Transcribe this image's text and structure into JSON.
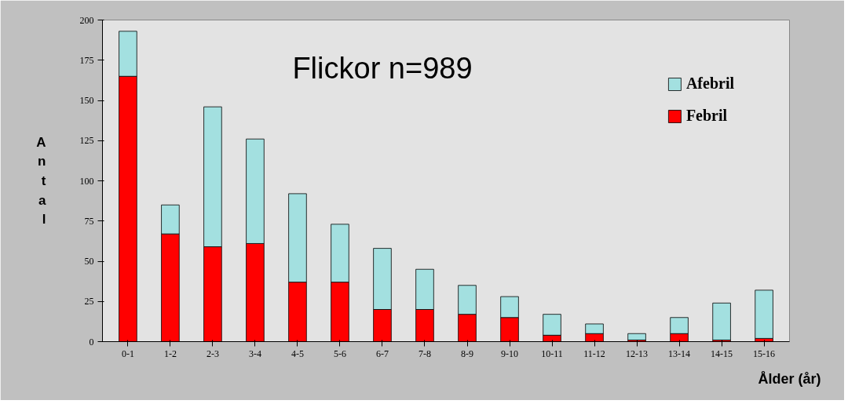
{
  "chart_data": {
    "type": "bar",
    "stacked": true,
    "title": "Flickor n=989",
    "xlabel": "Ålder (år)",
    "ylabel": "Antal",
    "categories": [
      "0-1",
      "1-2",
      "2-3",
      "3-4",
      "4-5",
      "5-6",
      "6-7",
      "7-8",
      "8-9",
      "9-10",
      "10-11",
      "11-12",
      "12-13",
      "13-14",
      "14-15",
      "15-16"
    ],
    "series": [
      {
        "name": "Febril",
        "color": "#ff0000",
        "values": [
          165,
          67,
          59,
          61,
          37,
          37,
          20,
          20,
          17,
          15,
          4,
          5,
          1,
          5,
          1,
          2
        ]
      },
      {
        "name": "Afebril",
        "color": "#a3e0e0",
        "values": [
          28,
          18,
          87,
          65,
          55,
          36,
          38,
          25,
          18,
          13,
          13,
          6,
          4,
          10,
          23,
          30
        ]
      }
    ],
    "ylim": [
      0,
      200
    ],
    "yticks": [
      0,
      25,
      50,
      75,
      100,
      125,
      150,
      175,
      200
    ],
    "grid": false,
    "legend": "top right"
  }
}
